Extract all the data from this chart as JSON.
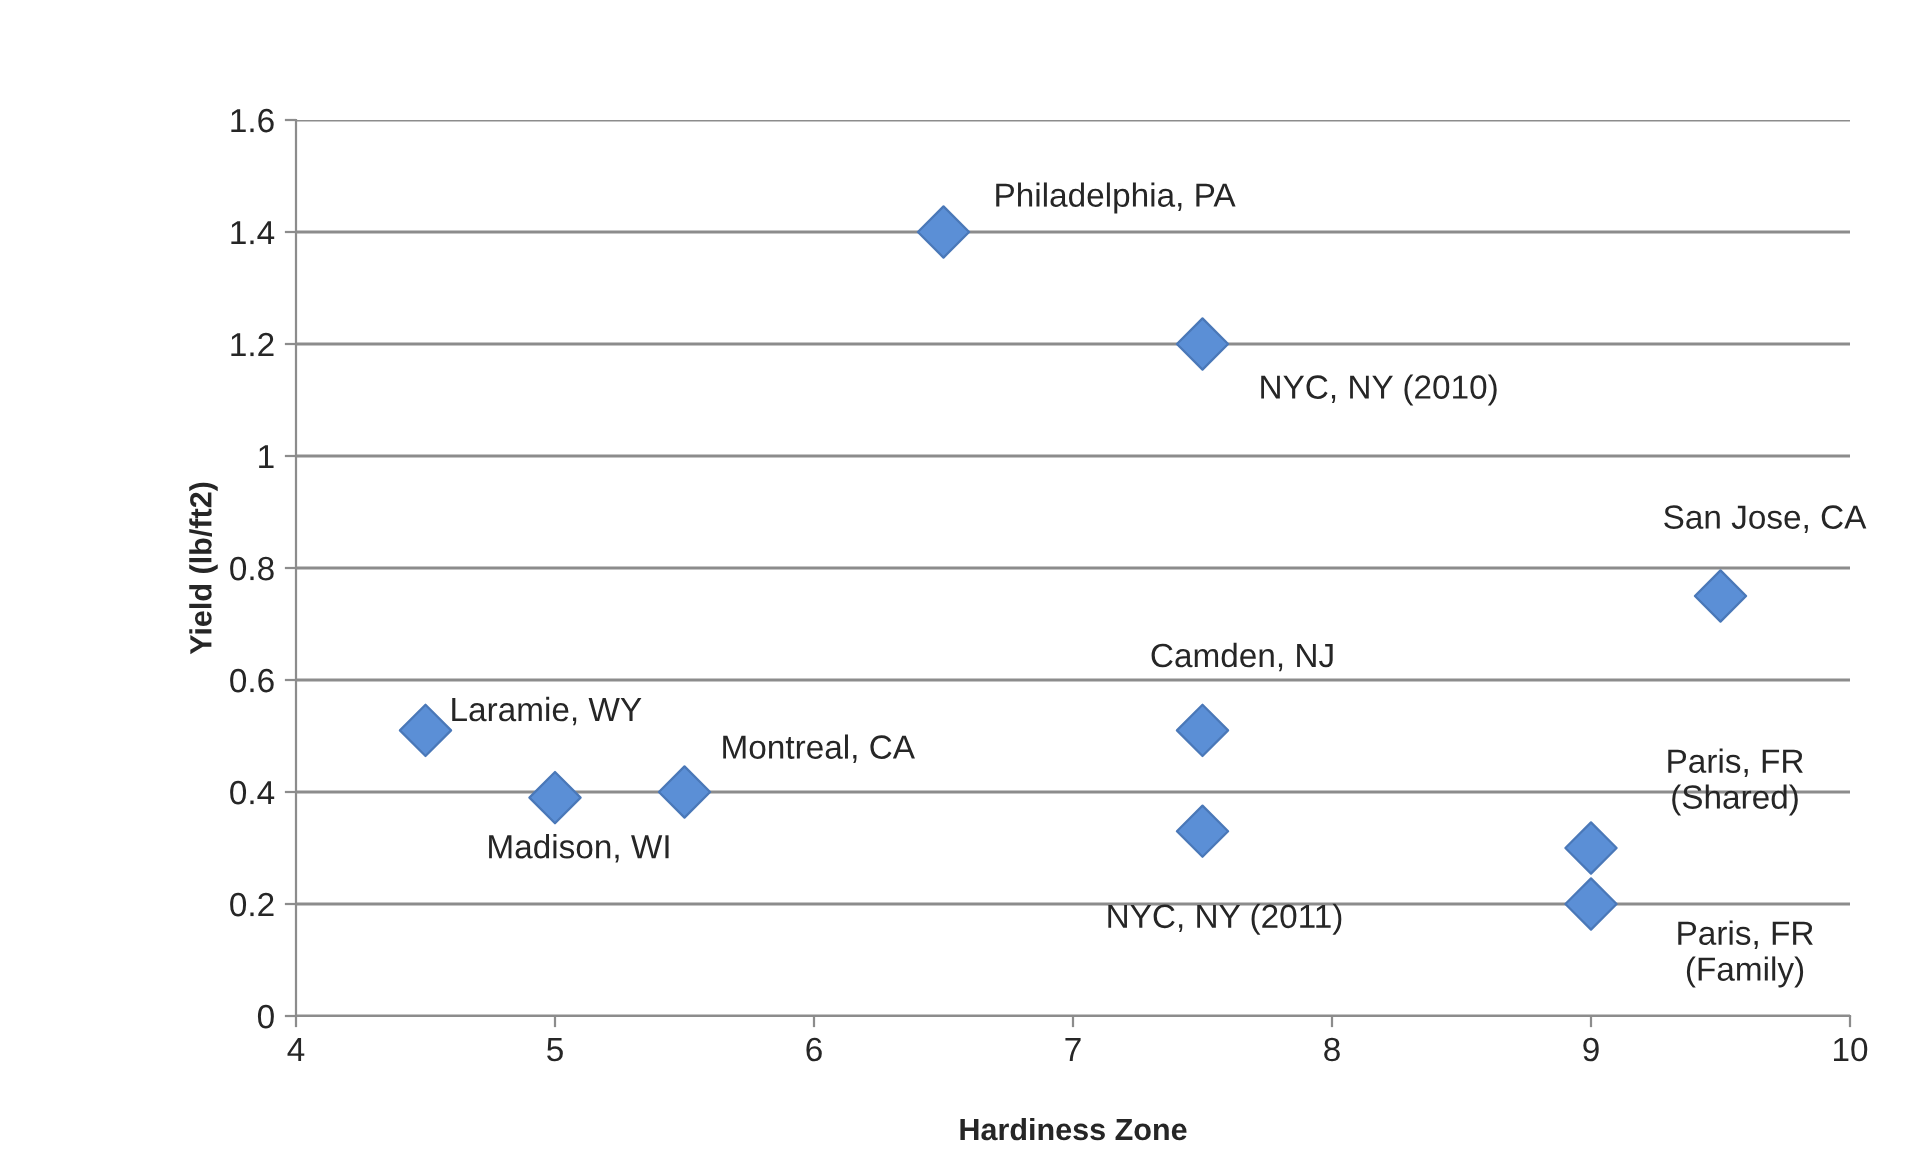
{
  "chart_data": {
    "type": "scatter",
    "xlabel": "Hardiness Zone",
    "ylabel": "Yield (lb/ft2)",
    "x": [
      4.5,
      5,
      5.5,
      6.5,
      7.5,
      7.5,
      7.5,
      9.5,
      9,
      9
    ],
    "series": [
      {
        "color": "#5b8fd6",
        "values": [
          0.51,
          0.39,
          0.4,
          1.4,
          1.2,
          0.51,
          0.33,
          0.75,
          0.3,
          0.2
        ]
      }
    ],
    "xlim": [
      4,
      10
    ],
    "xticks": [
      4,
      5,
      6,
      7,
      8,
      9,
      10
    ],
    "ylim": [
      0,
      1.6
    ],
    "yticks": [
      {
        "value": 0,
        "label": "0"
      },
      0.2,
      0.4,
      0.6,
      0.8,
      {
        "value": 1,
        "label": "1"
      },
      1.2,
      1.4,
      1.6
    ],
    "grid": "y",
    "marker": "diamond",
    "legend": false,
    "annotations": [
      {
        "text": "Laramie, WY",
        "x": 4.5,
        "y": 0.51
      },
      {
        "text": "Madison, WI",
        "x": 5,
        "y": 0.39
      },
      {
        "text": "Montreal, CA",
        "x": 5.5,
        "y": 0.4
      },
      {
        "text": "Philadelphia, PA",
        "x": 6.5,
        "y": 1.4
      },
      {
        "text": "NYC, NY (2010)",
        "x": 7.5,
        "y": 1.2
      },
      {
        "text": "Camden, NJ",
        "x": 7.5,
        "y": 0.51
      },
      {
        "text": "NYC, NY (2011)",
        "x": 7.5,
        "y": 0.33
      },
      {
        "text": "San Jose, CA",
        "x": 9.5,
        "y": 0.75
      },
      {
        "text": "Paris, FR\n(Shared)",
        "x": 9,
        "y": 0.3
      },
      {
        "text": "Paris, FR\n(Family)",
        "x": 9,
        "y": 0.2
      }
    ]
  }
}
